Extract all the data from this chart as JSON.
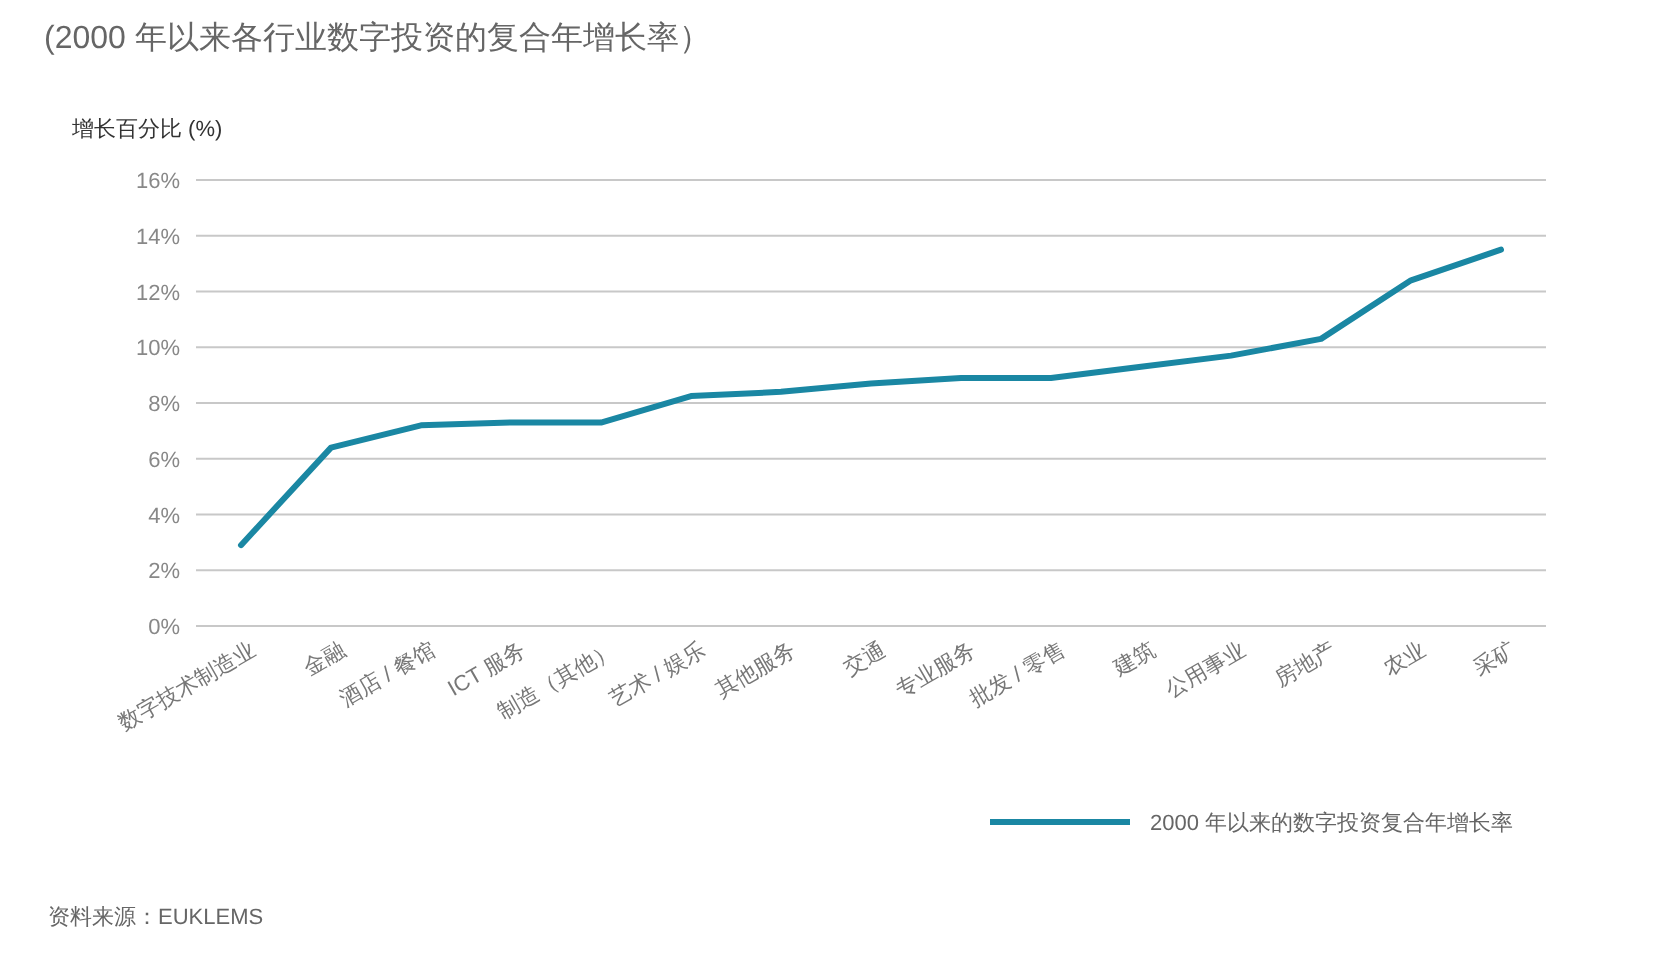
{
  "chart_data": {
    "type": "line",
    "title": "(2000 年以来各行业数字投资的复合年增长率）",
    "ylabel": "增长百分比 (%)",
    "categories": [
      "数字技术制造业",
      "金融",
      "酒店 / 餐馆",
      "ICT 服务",
      "制造（其他）",
      "艺术 / 娱乐",
      "其他服务",
      "交通",
      "专业服务",
      "批发 / 零售",
      "建筑",
      "公用事业",
      "房地产",
      "农业",
      "采矿"
    ],
    "series": [
      {
        "name": "2000 年以来的数字投资复合年增长率",
        "color": "#1a87a3",
        "values": [
          2.9,
          6.4,
          7.2,
          7.3,
          7.3,
          8.25,
          8.4,
          8.7,
          8.9,
          8.9,
          9.3,
          9.7,
          10.3,
          12.4,
          13.5
        ]
      }
    ],
    "ylim": [
      0,
      16
    ],
    "yticks": [
      {
        "value": 0,
        "label": "0%"
      },
      {
        "value": 2,
        "label": "2%"
      },
      {
        "value": 4,
        "label": "4%"
      },
      {
        "value": 6,
        "label": "6%"
      },
      {
        "value": 8,
        "label": "8%"
      },
      {
        "value": 10,
        "label": "10%"
      },
      {
        "value": 12,
        "label": "12%"
      },
      {
        "value": 14,
        "label": "14%"
      },
      {
        "value": 16,
        "label": "16%"
      }
    ],
    "grid": "y",
    "legend": "bottom right",
    "marker": "none",
    "line_style": "solid",
    "annotations": [
      "资料来源：EUKLEMS"
    ]
  }
}
